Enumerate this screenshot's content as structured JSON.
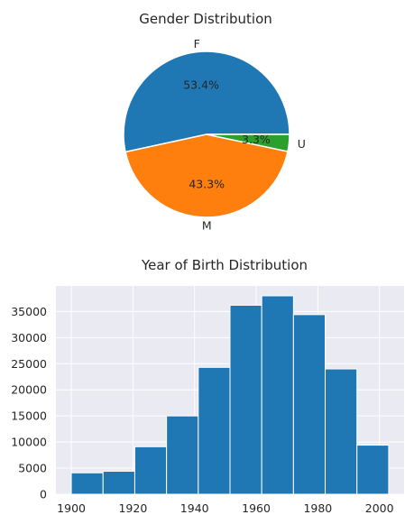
{
  "chart_data": [
    {
      "type": "pie",
      "title": "Gender Distribution",
      "labels": [
        "F",
        "M",
        "U"
      ],
      "values": [
        53.4,
        43.3,
        3.3
      ],
      "value_labels": [
        "53.4%",
        "43.3%",
        "3.3%"
      ],
      "colors": [
        "#1f77b4",
        "#ff7f0e",
        "#2ca02c"
      ]
    },
    {
      "type": "bar",
      "subtype": "histogram",
      "title": "Year of Birth Distribution",
      "xlabel": "",
      "ylabel": "",
      "bins": [
        [
          1900,
          1910.3
        ],
        [
          1910.3,
          1920.6
        ],
        [
          1920.6,
          1930.9
        ],
        [
          1930.9,
          1941.2
        ],
        [
          1941.2,
          1951.5
        ],
        [
          1951.5,
          1961.8
        ],
        [
          1961.8,
          1972.1
        ],
        [
          1972.1,
          1982.4
        ],
        [
          1982.4,
          1992.7
        ],
        [
          1992.7,
          2003
        ]
      ],
      "values": [
        4100,
        4400,
        9100,
        15000,
        24300,
        36200,
        38000,
        34400,
        24000,
        9400
      ],
      "xlim": [
        1895,
        2008
      ],
      "ylim": [
        0,
        39900
      ],
      "xticks": [
        "1900",
        "1920",
        "1940",
        "1960",
        "1980",
        "2000"
      ],
      "yticks": [
        "0",
        "5000",
        "10000",
        "15000",
        "20000",
        "25000",
        "30000",
        "35000"
      ],
      "grid": true,
      "bar_color": "#1f77b4",
      "background_color": "#eaeaf2"
    }
  ]
}
